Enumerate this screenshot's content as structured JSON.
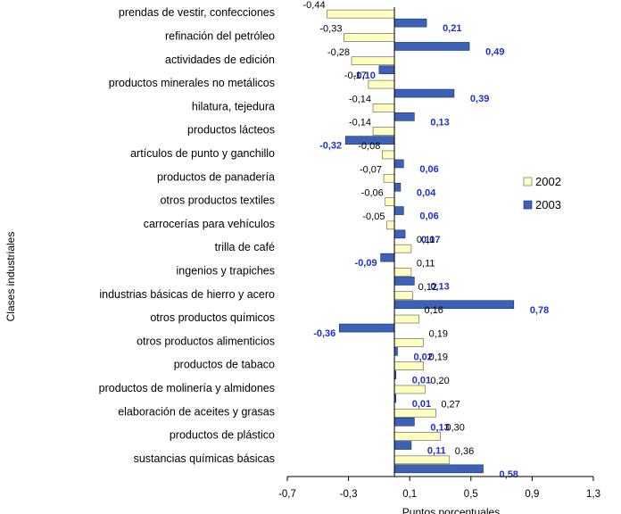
{
  "chart_data": {
    "type": "bar",
    "orientation": "horizontal",
    "categories": [
      "prendas de vestir, confecciones",
      "refinación del petróleo",
      "actividades de edición",
      "productos minerales no metálicos",
      "hilatura, tejedura",
      "productos lácteos",
      "artículos de punto y ganchillo",
      "productos de panadería",
      "otros productos textiles",
      "carrocerías para vehículos",
      "trilla de café",
      "ingenios y trapiches",
      "industrias básicas de hierro y acero",
      "otros productos químicos",
      "otros productos alimenticios",
      "productos de tabaco",
      "productos de molinería y almidones",
      "elaboración de aceites y grasas",
      "productos de plástico",
      "sustancias químicas básicas"
    ],
    "series": [
      {
        "name": "2002",
        "color": "#ffffc0",
        "values": [
          -0.44,
          -0.33,
          -0.28,
          -0.17,
          -0.14,
          -0.14,
          -0.08,
          -0.07,
          -0.06,
          -0.05,
          0.11,
          0.11,
          0.12,
          0.16,
          0.19,
          0.19,
          0.2,
          0.27,
          0.3,
          0.36
        ],
        "labels": [
          "-0,44",
          "-0,33",
          "-0,28",
          "-0,17",
          "-0,14",
          "-0,14",
          "-0,08",
          "-0,07",
          "-0,06",
          "-0,05",
          "0,11",
          "0,11",
          "0,12",
          "0,16",
          "0,19",
          "0,19",
          "0,20",
          "0,27",
          "0,30",
          "0,36"
        ]
      },
      {
        "name": "2003",
        "color": "#3c62b8",
        "values": [
          0.21,
          0.49,
          -0.1,
          0.39,
          0.13,
          -0.32,
          0.06,
          0.04,
          0.06,
          0.07,
          -0.09,
          0.13,
          0.78,
          -0.36,
          0.02,
          0.01,
          0.01,
          0.13,
          0.11,
          0.58
        ],
        "labels": [
          "0,21",
          "0,49",
          "-0,10",
          "0,39",
          "0,13",
          "-0,32",
          "0,06",
          "0,04",
          "0,06",
          "0,07",
          "-0,09",
          "0,13",
          "0,78",
          "-0,36",
          "0,02",
          "0,01",
          "0,01",
          "0,13",
          "0,11",
          "0,58"
        ]
      }
    ],
    "xlabel": "Puntos porcentuales",
    "ylabel": "Clases industriales",
    "xlim": [
      -0.7,
      1.3
    ],
    "xticks": [
      -0.7,
      -0.3,
      0.1,
      0.5,
      0.9,
      1.3
    ],
    "xtick_labels": [
      "-0,7",
      "-0,3",
      "0,1",
      "0,5",
      "0,9",
      "1,3"
    ],
    "grid": false,
    "legend_position": "right"
  }
}
